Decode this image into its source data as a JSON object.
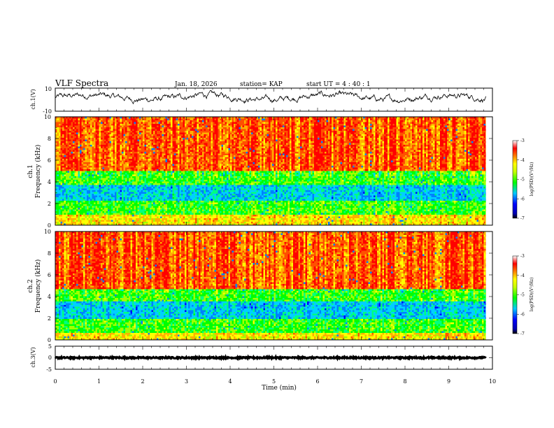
{
  "header": {
    "title": "VLF Spectra",
    "date": "Jan. 18, 2026",
    "station": "station= KAP",
    "start": "start  UT =   4 : 40 : 1"
  },
  "chart_data": [
    {
      "type": "line",
      "name": "ch1-voltage",
      "ylabel": "ch.1(V)",
      "ylim": [
        -10,
        10
      ],
      "yticks": [
        "10",
        "-10"
      ],
      "x_range_min": [
        0,
        9.85
      ],
      "approx_level": 2,
      "approx_amplitude": 5
    },
    {
      "type": "heatmap",
      "name": "ch1-spectrogram",
      "ylabel": "ch.1\nFrequency (kHz)",
      "ylim": [
        0,
        10
      ],
      "yticks": [
        "0",
        "2",
        "4",
        "6",
        "8",
        "10"
      ],
      "x_range_min": [
        0,
        9.85
      ],
      "colorbar": {
        "label": "log(PSD)(V²/Hz)",
        "range": [
          -7,
          -3
        ],
        "ticks": [
          "-3",
          "-4",
          "-5",
          "-6",
          "-7"
        ]
      },
      "bands_khz": [
        {
          "from": 0.0,
          "to": 1.0,
          "level": "orange/yellow"
        },
        {
          "from": 1.0,
          "to": 2.3,
          "level": "green"
        },
        {
          "from": 2.3,
          "to": 3.7,
          "level": "cyan/blue"
        },
        {
          "from": 3.7,
          "to": 5.0,
          "level": "green"
        },
        {
          "from": 5.0,
          "to": 10.0,
          "level": "red/yellow"
        }
      ]
    },
    {
      "type": "heatmap",
      "name": "ch2-spectrogram",
      "ylabel": "ch.2\nFrequency (kHz)",
      "ylim": [
        0,
        10
      ],
      "yticks": [
        "0",
        "2",
        "4",
        "6",
        "8",
        "10"
      ],
      "x_range_min": [
        0,
        9.85
      ],
      "colorbar": {
        "label": "log(PSD)(V²/Hz)",
        "range": [
          -7,
          -3
        ],
        "ticks": [
          "-3",
          "-4",
          "-5",
          "-6",
          "-7"
        ]
      },
      "bands_khz": [
        {
          "from": 0.0,
          "to": 0.7,
          "level": "orange/yellow"
        },
        {
          "from": 0.7,
          "to": 2.0,
          "level": "green"
        },
        {
          "from": 2.0,
          "to": 3.5,
          "level": "cyan/blue"
        },
        {
          "from": 3.5,
          "to": 4.7,
          "level": "green"
        },
        {
          "from": 4.7,
          "to": 10.0,
          "level": "red/yellow"
        }
      ]
    },
    {
      "type": "line",
      "name": "ch3-voltage",
      "ylabel": "ch.3(V)",
      "ylim": [
        -5,
        5
      ],
      "yticks": [
        "5",
        "0",
        "-5"
      ],
      "x_range_min": [
        0,
        9.85
      ],
      "approx_level": 0
    }
  ],
  "xaxis": {
    "label": "Time (min)",
    "range": [
      0,
      10
    ],
    "ticks": [
      "0",
      "1",
      "2",
      "3",
      "4",
      "5",
      "6",
      "7",
      "8",
      "9",
      "10"
    ]
  }
}
